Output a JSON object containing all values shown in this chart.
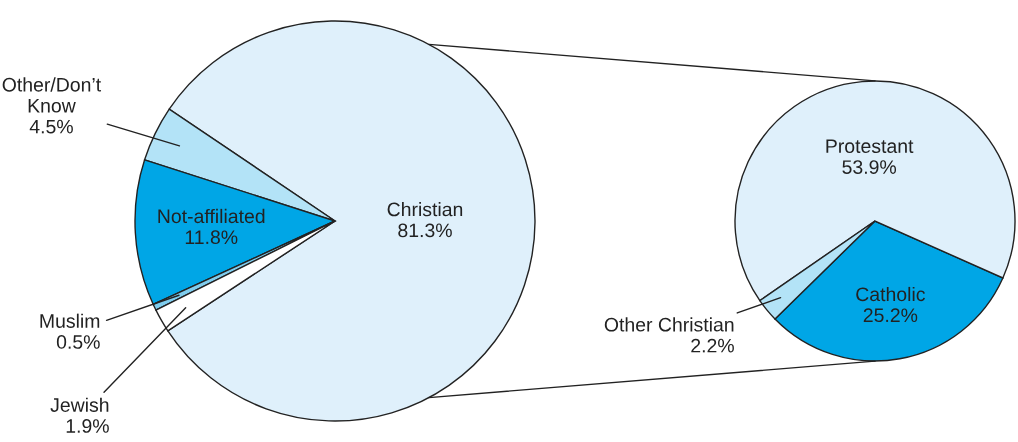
{
  "chart_data": [
    {
      "type": "pie",
      "categories": [
        "Christian",
        "Other/Don’t Know",
        "Not-affiliated",
        "Muslim",
        "Jewish"
      ],
      "values": [
        81.3,
        4.5,
        11.8,
        0.5,
        1.9
      ],
      "value_labels": [
        "81.3%",
        "4.5%",
        "11.8%",
        "0.5%",
        "1.9%"
      ],
      "colors": [
        "#dff0fb",
        "#b3e3f7",
        "#00a6e6",
        "#7fcdee",
        "#ffffff"
      ]
    },
    {
      "type": "pie",
      "categories": [
        "Catholic",
        "Protestant",
        "Other Christian"
      ],
      "values": [
        25.2,
        53.9,
        2.2
      ],
      "value_labels": [
        "25.2%",
        "53.9%",
        "2.2%"
      ],
      "colors": [
        "#00a6e6",
        "#dff0fb",
        "#b3e3f7"
      ]
    }
  ]
}
